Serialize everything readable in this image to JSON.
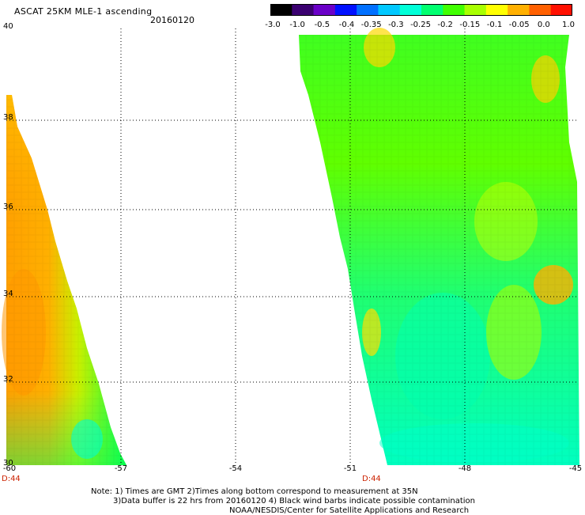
{
  "header": {
    "title": "ASCAT 25KM MLE-1 ascending",
    "date": "20160120"
  },
  "colorbar": {
    "labels": [
      "-3.0",
      "-1.0",
      "-0.5",
      "-0.4",
      "-0.35",
      "-0.3",
      "-0.25",
      "-0.2",
      "-0.15",
      "-0.1",
      "-0.05",
      "0.0",
      "1.0"
    ],
    "colors": [
      "#000000",
      "#3a0070",
      "#6a00c8",
      "#0010ff",
      "#0070ff",
      "#00c8ff",
      "#00ffd8",
      "#00ff70",
      "#40ff00",
      "#a8ff00",
      "#ffff00",
      "#ffb000",
      "#ff6000",
      "#ff1000"
    ]
  },
  "axes": {
    "lat_labels": [
      "40",
      "38",
      "36",
      "34",
      "32",
      "30"
    ],
    "lon_labels": [
      "-60",
      "-57",
      "-54",
      "-51",
      "-48",
      "-45"
    ],
    "time_labels": [
      "D:44",
      "D:44"
    ]
  },
  "footer": {
    "note1": "Note: 1) Times are GMT 2)Times along bottom correspond to measurement at 35N",
    "note2": "3)Data buffer is 22 hrs from 20160120 4) Black wind barbs indicate possible contamination",
    "credit": "NOAA/NESDIS/Center for Satellite Applications and Research"
  }
}
